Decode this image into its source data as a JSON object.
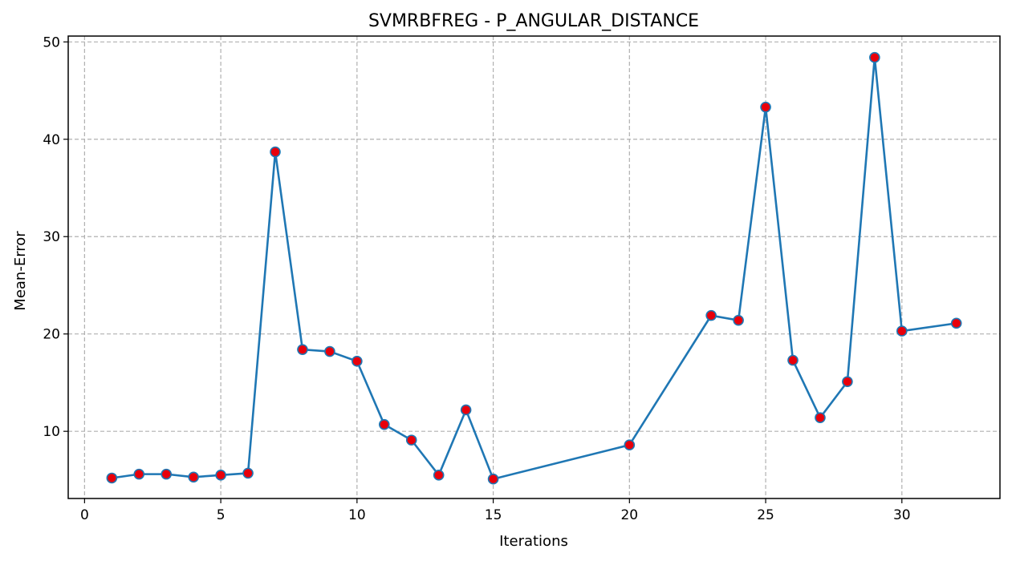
{
  "chart_data": {
    "type": "line",
    "title": "SVMRBFREG - P_ANGULAR_DISTANCE",
    "xlabel": "Iterations",
    "ylabel": "Mean-Error",
    "xlim": [
      -0.6,
      33.6
    ],
    "ylim": [
      3.1,
      50.6
    ],
    "xticks": [
      0,
      5,
      10,
      15,
      20,
      25,
      30
    ],
    "yticks": [
      10,
      20,
      30,
      40,
      50
    ],
    "grid": true,
    "series": [
      {
        "x": [
          1,
          2,
          3,
          4,
          5,
          6,
          7,
          8,
          9,
          10,
          11,
          12,
          13,
          14,
          15,
          20,
          23,
          24,
          25,
          26,
          27,
          28,
          29,
          30,
          32
        ],
        "y": [
          5.2,
          5.6,
          5.6,
          5.3,
          5.5,
          5.7,
          38.7,
          18.4,
          18.2,
          17.2,
          10.7,
          9.1,
          5.5,
          12.2,
          5.1,
          8.6,
          21.9,
          21.4,
          43.3,
          17.3,
          11.4,
          15.1,
          48.4,
          20.3,
          21.1
        ],
        "line_color": "#1f77b4",
        "marker_color": "#e8000b",
        "marker_edge_color": "#1f77b4"
      }
    ]
  }
}
